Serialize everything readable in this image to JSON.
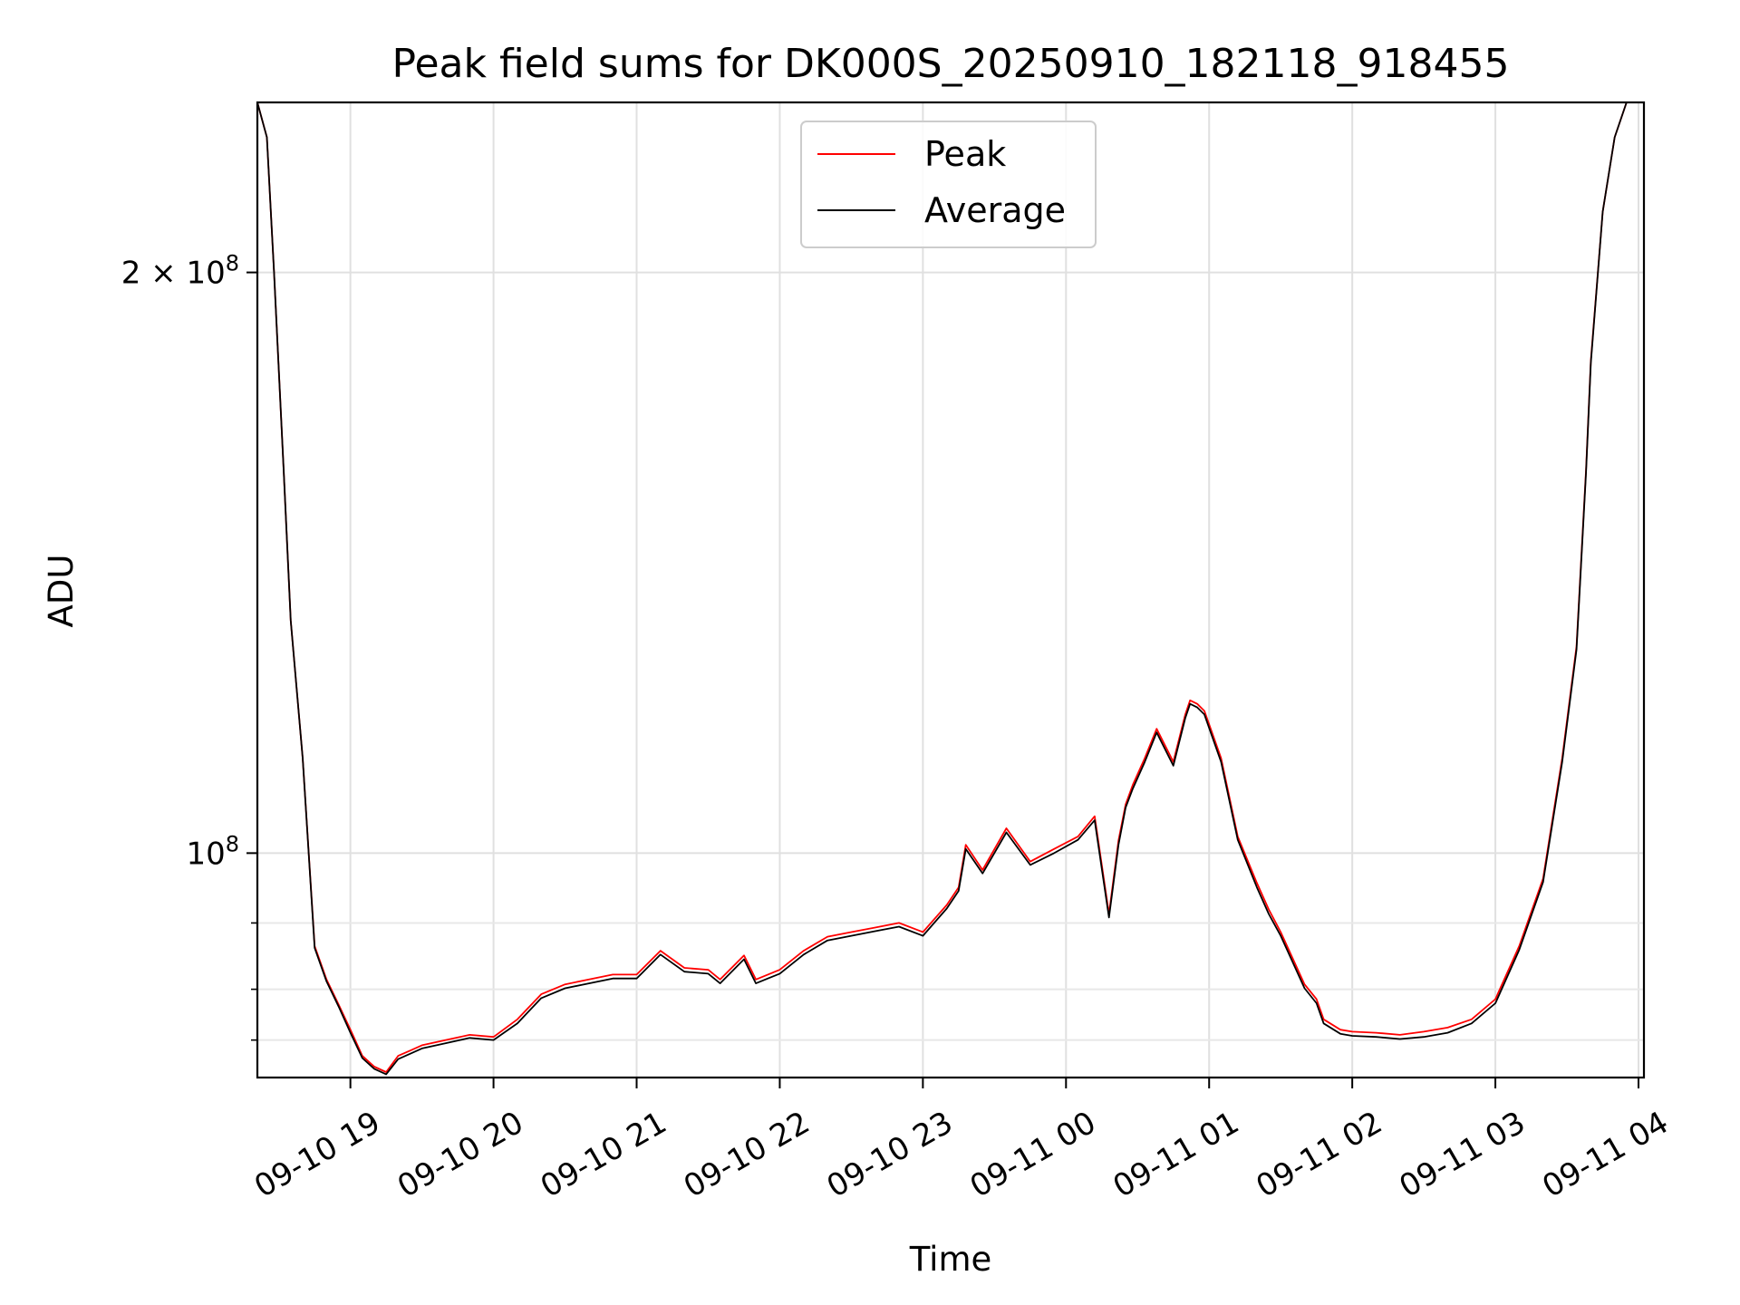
{
  "chart_data": {
    "type": "line",
    "title": "Peak field sums for DK000S_20250910_182118_918455",
    "xlabel": "Time",
    "ylabel": "ADU",
    "yscale": "log",
    "x_range": [
      "2025-09-10 18:21",
      "2025-09-11 04:00"
    ],
    "y_range": [
      76500000,
      245000000
    ],
    "grid": true,
    "legend": {
      "placement": "upper center",
      "entries": [
        "Peak",
        "Average"
      ]
    },
    "x_ticks": [
      {
        "t": "2025-09-10 19:00",
        "label": "09-10 19"
      },
      {
        "t": "2025-09-10 20:00",
        "label": "09-10 20"
      },
      {
        "t": "2025-09-10 21:00",
        "label": "09-10 21"
      },
      {
        "t": "2025-09-10 22:00",
        "label": "09-10 22"
      },
      {
        "t": "2025-09-10 23:00",
        "label": "09-10 23"
      },
      {
        "t": "2025-09-11 00:00",
        "label": "09-11 00"
      },
      {
        "t": "2025-09-11 01:00",
        "label": "09-11 01"
      },
      {
        "t": "2025-09-11 02:00",
        "label": "09-11 02"
      },
      {
        "t": "2025-09-11 03:00",
        "label": "09-11 03"
      },
      {
        "t": "2025-09-11 04:00",
        "label": "09-11 04"
      }
    ],
    "y_major_ticks": [
      {
        "value": 100000000,
        "base": "10",
        "exp": "8"
      },
      {
        "value": 200000000,
        "base": "2 × 10",
        "exp": "8"
      }
    ],
    "y_minor_ticks": [
      80000000,
      85000000,
      92000000
    ],
    "colors": {
      "Peak": "#ff0000",
      "Average": "#000000"
    },
    "series": [
      {
        "name": "Peak",
        "x": [
          "2025-09-10 18:21",
          "2025-09-10 18:25",
          "2025-09-10 18:28",
          "2025-09-10 18:32",
          "2025-09-10 18:35",
          "2025-09-10 18:40",
          "2025-09-10 18:45",
          "2025-09-10 18:50",
          "2025-09-10 18:55",
          "2025-09-10 19:00",
          "2025-09-10 19:05",
          "2025-09-10 19:10",
          "2025-09-10 19:15",
          "2025-09-10 19:20",
          "2025-09-10 19:25",
          "2025-09-10 19:30",
          "2025-09-10 19:40",
          "2025-09-10 19:50",
          "2025-09-10 20:00",
          "2025-09-10 20:10",
          "2025-09-10 20:20",
          "2025-09-10 20:30",
          "2025-09-10 20:40",
          "2025-09-10 20:50",
          "2025-09-10 21:00",
          "2025-09-10 21:10",
          "2025-09-10 21:20",
          "2025-09-10 21:30",
          "2025-09-10 21:35",
          "2025-09-10 21:45",
          "2025-09-10 21:50",
          "2025-09-10 21:55",
          "2025-09-10 22:00",
          "2025-09-10 22:10",
          "2025-09-10 22:20",
          "2025-09-10 22:30",
          "2025-09-10 22:40",
          "2025-09-10 22:50",
          "2025-09-10 23:00",
          "2025-09-10 23:10",
          "2025-09-10 23:15",
          "2025-09-10 23:18",
          "2025-09-10 23:25",
          "2025-09-10 23:35",
          "2025-09-10 23:45",
          "2025-09-10 23:55",
          "2025-09-11 00:05",
          "2025-09-11 00:12",
          "2025-09-11 00:18",
          "2025-09-11 00:22",
          "2025-09-11 00:25",
          "2025-09-11 00:28",
          "2025-09-11 00:33",
          "2025-09-11 00:38",
          "2025-09-11 00:45",
          "2025-09-11 00:50",
          "2025-09-11 00:52",
          "2025-09-11 00:55",
          "2025-09-11 00:58",
          "2025-09-11 01:05",
          "2025-09-11 01:12",
          "2025-09-11 01:20",
          "2025-09-11 01:25",
          "2025-09-11 01:30",
          "2025-09-11 01:40",
          "2025-09-11 01:45",
          "2025-09-11 01:48",
          "2025-09-11 01:55",
          "2025-09-11 02:00",
          "2025-09-11 02:10",
          "2025-09-11 02:20",
          "2025-09-11 02:30",
          "2025-09-11 02:40",
          "2025-09-11 02:50",
          "2025-09-11 03:00",
          "2025-09-11 03:10",
          "2025-09-11 03:20",
          "2025-09-11 03:28",
          "2025-09-11 03:34",
          "2025-09-11 03:38",
          "2025-09-11 03:40",
          "2025-09-11 03:45",
          "2025-09-11 03:50",
          "2025-09-11 03:55",
          "2025-09-11 04:00"
        ],
        "y": [
          245000000,
          235000000,
          200000000,
          158000000,
          132000000,
          112000000,
          89500000,
          86000000,
          83500000,
          81000000,
          78500000,
          77500000,
          77000000,
          78500000,
          79000000,
          79500000,
          80000000,
          80500000,
          80300000,
          82000000,
          84500000,
          85500000,
          86000000,
          86500000,
          86500000,
          89000000,
          87200000,
          87000000,
          86000000,
          88500000,
          86000000,
          86500000,
          87000000,
          89000000,
          90500000,
          91000000,
          91500000,
          92000000,
          91000000,
          94000000,
          96000000,
          101000000,
          98000000,
          103000000,
          99000000,
          100500000,
          102000000,
          104500000,
          93000000,
          101500000,
          106000000,
          108500000,
          112000000,
          116000000,
          111500000,
          118000000,
          120000000,
          119500000,
          118500000,
          112000000,
          102000000,
          96500000,
          93500000,
          91000000,
          85500000,
          84000000,
          82000000,
          81000000,
          80800000,
          80700000,
          80500000,
          80800000,
          81200000,
          82000000,
          84000000,
          89500000,
          97000000,
          112000000,
          128000000,
          158000000,
          180000000,
          215000000,
          235000000,
          245000000,
          245000000
        ]
      },
      {
        "name": "Average",
        "x": [
          "2025-09-10 18:21",
          "2025-09-10 18:25",
          "2025-09-10 18:28",
          "2025-09-10 18:32",
          "2025-09-10 18:35",
          "2025-09-10 18:40",
          "2025-09-10 18:45",
          "2025-09-10 18:50",
          "2025-09-10 18:55",
          "2025-09-10 19:00",
          "2025-09-10 19:05",
          "2025-09-10 19:10",
          "2025-09-10 19:15",
          "2025-09-10 19:20",
          "2025-09-10 19:25",
          "2025-09-10 19:30",
          "2025-09-10 19:40",
          "2025-09-10 19:50",
          "2025-09-10 20:00",
          "2025-09-10 20:10",
          "2025-09-10 20:20",
          "2025-09-10 20:30",
          "2025-09-10 20:40",
          "2025-09-10 20:50",
          "2025-09-10 21:00",
          "2025-09-10 21:10",
          "2025-09-10 21:20",
          "2025-09-10 21:30",
          "2025-09-10 21:35",
          "2025-09-10 21:45",
          "2025-09-10 21:50",
          "2025-09-10 21:55",
          "2025-09-10 22:00",
          "2025-09-10 22:10",
          "2025-09-10 22:20",
          "2025-09-10 22:30",
          "2025-09-10 22:40",
          "2025-09-10 22:50",
          "2025-09-10 23:00",
          "2025-09-10 23:10",
          "2025-09-10 23:15",
          "2025-09-10 23:18",
          "2025-09-10 23:25",
          "2025-09-10 23:35",
          "2025-09-10 23:45",
          "2025-09-10 23:55",
          "2025-09-11 00:05",
          "2025-09-11 00:12",
          "2025-09-11 00:18",
          "2025-09-11 00:22",
          "2025-09-11 00:25",
          "2025-09-11 00:28",
          "2025-09-11 00:33",
          "2025-09-11 00:38",
          "2025-09-11 00:45",
          "2025-09-11 00:50",
          "2025-09-11 00:52",
          "2025-09-11 00:55",
          "2025-09-11 00:58",
          "2025-09-11 01:05",
          "2025-09-11 01:12",
          "2025-09-11 01:20",
          "2025-09-11 01:25",
          "2025-09-11 01:30",
          "2025-09-11 01:40",
          "2025-09-11 01:45",
          "2025-09-11 01:48",
          "2025-09-11 01:55",
          "2025-09-11 02:00",
          "2025-09-11 02:10",
          "2025-09-11 02:20",
          "2025-09-11 02:30",
          "2025-09-11 02:40",
          "2025-09-11 02:50",
          "2025-09-11 03:00",
          "2025-09-11 03:10",
          "2025-09-11 03:20",
          "2025-09-11 03:28",
          "2025-09-11 03:34",
          "2025-09-11 03:38",
          "2025-09-11 03:40",
          "2025-09-11 03:45",
          "2025-09-11 03:50",
          "2025-09-11 03:55",
          "2025-09-11 04:00"
        ],
        "y": [
          245000000,
          235000000,
          200000000,
          158000000,
          132000000,
          112000000,
          89300000,
          85800000,
          83300000,
          80700000,
          78300000,
          77300000,
          76800000,
          78200000,
          78700000,
          79200000,
          79700000,
          80200000,
          80000000,
          81600000,
          84100000,
          85100000,
          85600000,
          86100000,
          86100000,
          88600000,
          86800000,
          86600000,
          85600000,
          88100000,
          85600000,
          86100000,
          86600000,
          88600000,
          90100000,
          90600000,
          91100000,
          91600000,
          90600000,
          93600000,
          95600000,
          100500000,
          97600000,
          102500000,
          98600000,
          100000000,
          101600000,
          104000000,
          92600000,
          101000000,
          105600000,
          108000000,
          111500000,
          115500000,
          111000000,
          117500000,
          119500000,
          119000000,
          118000000,
          111500000,
          101600000,
          96000000,
          93000000,
          90600000,
          85100000,
          83600000,
          81600000,
          80600000,
          80400000,
          80300000,
          80100000,
          80300000,
          80700000,
          81600000,
          83600000,
          89100000,
          96600000,
          111500000,
          127500000,
          157500000,
          179500000,
          215000000,
          235000000,
          245000000,
          245000000
        ]
      }
    ]
  }
}
